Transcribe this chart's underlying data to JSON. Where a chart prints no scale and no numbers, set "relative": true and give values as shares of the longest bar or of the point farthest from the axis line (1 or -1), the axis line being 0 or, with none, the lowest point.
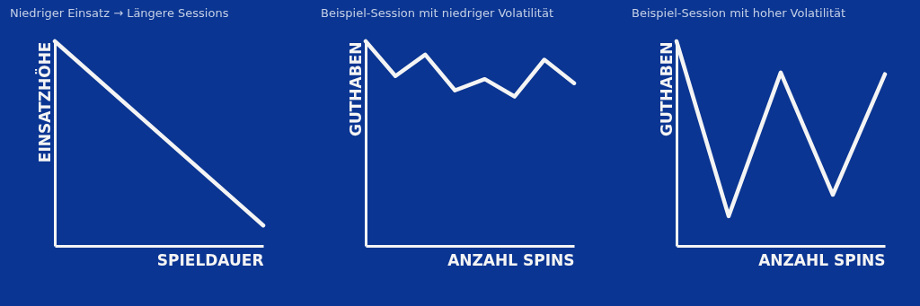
{
  "chart_data": [
    {
      "type": "line",
      "title": "Niedriger Einsatz → Längere Sessions",
      "xlabel": "SPIELDAUER",
      "ylabel": "EINSATZHÖHE",
      "relative": true,
      "categories": [
        null,
        null
      ],
      "series": [
        {
          "color": "#f4f4f4",
          "values": [
            1,
            0.1
          ]
        }
      ]
    },
    {
      "type": "line",
      "title": "Beispiel-Session mit niedriger Volatilität",
      "xlabel": "ANZAHL SPINS",
      "ylabel": "GUTHABEN",
      "relative": true,
      "categories": [
        null,
        null,
        null,
        null,
        null,
        null,
        null,
        null
      ],
      "series": [
        {
          "color": "#f4f4f4",
          "values": [
            1,
            0.83,
            0.935,
            0.76,
            0.815,
            0.73,
            0.91,
            0.795
          ]
        }
      ]
    },
    {
      "type": "line",
      "title": "Beispiel-Session mit hoher Volatilität",
      "xlabel": "ANZAHL SPINS",
      "ylabel": "GUTHABEN",
      "relative": true,
      "categories": [
        null,
        null,
        null,
        null,
        null
      ],
      "series": [
        {
          "color": "#f4f4f4",
          "values": [
            1,
            0.145,
            0.847,
            0.25,
            0.839
          ]
        }
      ]
    }
  ]
}
